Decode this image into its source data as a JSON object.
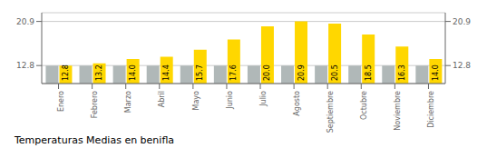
{
  "chart_data": {
    "type": "bar",
    "title": "Temperaturas Medias en benifla",
    "categories": [
      "Enero",
      "Febrero",
      "Marzo",
      "Abril",
      "Mayo",
      "Junio",
      "Julio",
      "Agosto",
      "Septiembre",
      "Octubre",
      "Noviembre",
      "Diciembre"
    ],
    "series": [
      {
        "color": "#B0B8B8",
        "values": [
          12.8,
          12.8,
          12.8,
          12.8,
          12.8,
          12.8,
          12.8,
          12.8,
          12.8,
          12.8,
          12.8,
          12.8
        ]
      },
      {
        "color": "#FFD700",
        "values": [
          12.8,
          13.2,
          14.0,
          14.4,
          15.7,
          17.6,
          20.0,
          20.9,
          20.5,
          18.5,
          16.3,
          14.0
        ],
        "data_labels": true,
        "value_labels": [
          "12.8",
          "13.2",
          "14.0",
          "14.4",
          "15.7",
          "17.6",
          "20.0",
          "20.9",
          "20.5",
          "18.5",
          "16.3",
          "14.0"
        ]
      }
    ],
    "ylim": [
      9.5,
      22.5
    ],
    "yticks": [
      12.8,
      20.9
    ],
    "y2lim": [
      9.5,
      22.5
    ],
    "y2ticks": [
      12.8,
      20.9
    ],
    "grid": true
  }
}
